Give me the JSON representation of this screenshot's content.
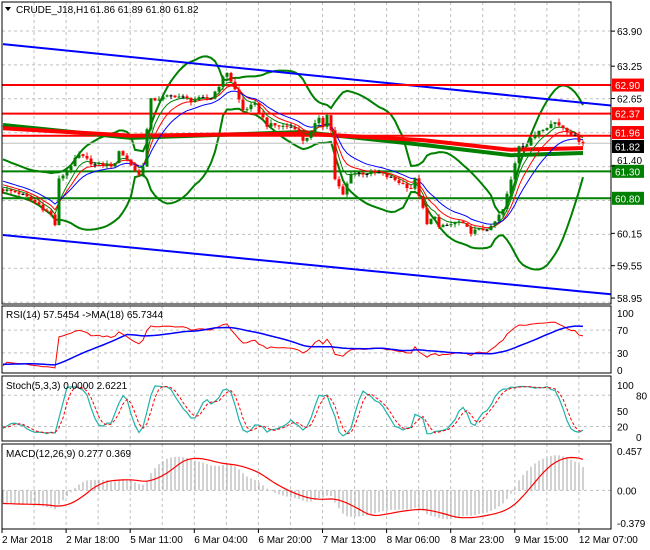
{
  "chart_data": {
    "type": "candlestick",
    "title": "CRUDE_J18,H1",
    "ohlc_readout": "61.86 61.89 61.80 61.82",
    "ylim": [
      58.84,
      64.44
    ],
    "price_axis_labels": [
      "63.90",
      "63.25",
      "62.65",
      "61.40",
      "60.15",
      "59.55",
      "58.95"
    ],
    "price_axis_values": [
      63.9,
      63.25,
      62.65,
      61.4,
      60.15,
      59.55,
      58.95
    ],
    "close_keypoints": [
      [
        -40,
        61.95
      ],
      [
        -15,
        61.35
      ],
      [
        0,
        60.96
      ],
      [
        4,
        60.9
      ],
      [
        9,
        60.68
      ],
      [
        12,
        60.49
      ],
      [
        13,
        60.31
      ],
      [
        14,
        61.14
      ],
      [
        17,
        61.42
      ],
      [
        19,
        61.6
      ],
      [
        23,
        61.42
      ],
      [
        28,
        61.42
      ],
      [
        29,
        61.7
      ],
      [
        32,
        61.42
      ],
      [
        34,
        61.23
      ],
      [
        35,
        61.42
      ],
      [
        36,
        62.07
      ],
      [
        37,
        62.62
      ],
      [
        43,
        62.71
      ],
      [
        47,
        62.62
      ],
      [
        52,
        62.66
      ],
      [
        54,
        62.9
      ],
      [
        56,
        63.14
      ],
      [
        58,
        62.81
      ],
      [
        60,
        62.44
      ],
      [
        63,
        62.53
      ],
      [
        66,
        62.16
      ],
      [
        73,
        62.12
      ],
      [
        75,
        61.88
      ],
      [
        77,
        62.0
      ],
      [
        79,
        62.31
      ],
      [
        80,
        62.16
      ],
      [
        81,
        62.34
      ],
      [
        82,
        62.07
      ],
      [
        83,
        61.14
      ],
      [
        85,
        60.86
      ],
      [
        87,
        61.27
      ],
      [
        94,
        61.27
      ],
      [
        98,
        61.14
      ],
      [
        102,
        60.99
      ],
      [
        103,
        61.14
      ],
      [
        105,
        60.59
      ],
      [
        106,
        60.31
      ],
      [
        108,
        60.49
      ],
      [
        109,
        60.25
      ],
      [
        114,
        60.36
      ],
      [
        117,
        60.18
      ],
      [
        122,
        60.25
      ],
      [
        125,
        60.59
      ],
      [
        127,
        61.14
      ],
      [
        129,
        61.79
      ],
      [
        131,
        61.79
      ],
      [
        134,
        62.07
      ],
      [
        138,
        62.21
      ],
      [
        141,
        62.07
      ],
      [
        144,
        61.88
      ],
      [
        145,
        61.82
      ]
    ],
    "current_price": {
      "price": 61.82,
      "label": "61.82",
      "color": "#000000"
    },
    "levels": [
      {
        "price": 62.9,
        "label": "62.90",
        "color": "#ff0000"
      },
      {
        "price": 62.37,
        "label": "62.37",
        "color": "#ff0000"
      },
      {
        "price": 61.96,
        "label": "61.96",
        "color": "#ff0000"
      },
      {
        "price": 61.3,
        "label": "61.30",
        "color": "#008000"
      },
      {
        "price": 60.8,
        "label": "60.80",
        "color": "#008000"
      }
    ],
    "channel": {
      "color": "#0000ff",
      "upper": [
        [
          0,
          63.66
        ],
        [
          145,
          62.57
        ],
        [
          152,
          62.52
        ]
      ],
      "lower": [
        [
          0,
          60.12
        ],
        [
          145,
          59.07
        ],
        [
          152,
          59.02
        ]
      ]
    },
    "long_ma": {
      "red": {
        "color": "#ff0000",
        "points": [
          [
            0,
            62.1
          ],
          [
            32,
            61.96
          ],
          [
            75,
            62.0
          ],
          [
            105,
            61.88
          ],
          [
            127,
            61.7
          ],
          [
            145,
            61.73
          ]
        ]
      },
      "green": {
        "color": "#008000",
        "points": [
          [
            0,
            62.16
          ],
          [
            32,
            61.92
          ],
          [
            75,
            62.03
          ],
          [
            105,
            61.79
          ],
          [
            127,
            61.6
          ],
          [
            145,
            61.64
          ]
        ]
      }
    },
    "fast_ma": [
      {
        "period": 5,
        "color": "#008000"
      },
      {
        "period": 8,
        "color": "#ff0000"
      },
      {
        "period": 13,
        "color": "#0000ff"
      }
    ],
    "bollinger": {
      "period": 20,
      "deviation": 2,
      "color": "#008000"
    },
    "time_labels": [
      "2 Mar 2018",
      "2 Mar 18:00",
      "5 Mar 11:00",
      "6 Mar 04:00",
      "6 Mar 20:00",
      "7 Mar 13:00",
      "8 Mar 06:00",
      "8 Mar 23:00",
      "9 Mar 15:00",
      "12 Mar 07:00"
    ],
    "indicators": {
      "rsi": {
        "header": "RSI(14) 57.5454  ->MA(18) 65.7344",
        "period": 14,
        "ma_period": 18,
        "value": 57.5454,
        "ma_value": 65.7344,
        "ylim": [
          -5.3,
          112.3
        ],
        "axis_labels": [
          "100",
          "70",
          "30",
          "0"
        ],
        "axis_values": [
          100,
          70,
          30,
          0
        ],
        "dashed_levels": [
          70,
          30
        ],
        "line_color": "#ff0000",
        "ma_color": "#0000ff"
      },
      "stoch": {
        "header": "Stoch(5,3,3) 0.0000 2.6221",
        "k": 5,
        "d": 3,
        "slowing": 3,
        "main": 0.0,
        "signal": 2.6221,
        "ylim": [
          -7.7,
          117
        ],
        "axis_labels": [
          "100",
          "80",
          "50",
          "20",
          "0"
        ],
        "axis_values": [
          100,
          80,
          50,
          20,
          0
        ],
        "dashed_levels": [
          80,
          20
        ],
        "main_color": "#20b2aa",
        "signal_color": "#ff0000"
      },
      "macd": {
        "header": "MACD(12,26,9) 0.277 0.369",
        "fast": 12,
        "slow": 26,
        "signal_period": 9,
        "main": 0.277,
        "signal": 0.369,
        "ylim": [
          -0.449,
          0.538
        ],
        "axis_labels": [
          "0.457",
          "0.00",
          "-0.379"
        ],
        "axis_values": [
          0.457,
          0.0,
          -0.379
        ],
        "hist_color": "#b4b4b4",
        "signal_color": "#ff0000"
      }
    }
  }
}
